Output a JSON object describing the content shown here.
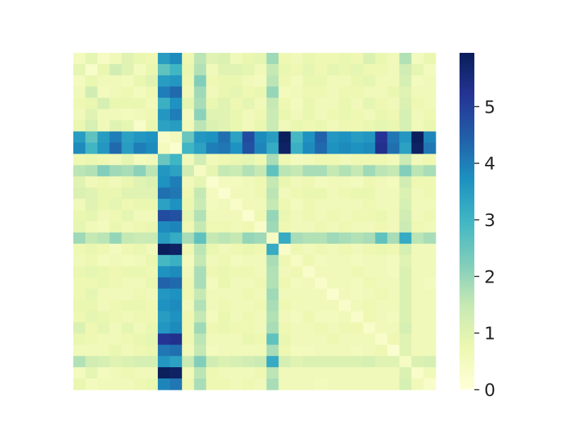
{
  "chart_data": {
    "type": "heatmap",
    "n_rows": 30,
    "n_cols": 30,
    "colormap": "YlGnBu",
    "vmin": 0,
    "vmax": 5.95,
    "colorbar": {
      "ticks": [
        0,
        1,
        2,
        3,
        4,
        5
      ],
      "tick_labels": [
        "0",
        "1",
        "2",
        "3",
        "4",
        "5"
      ]
    },
    "values": [
      [
        0.5,
        0.9,
        0.4,
        0.6,
        1.0,
        0.8,
        0.7,
        3.5,
        3.8,
        0.7,
        1.6,
        1.0,
        1.1,
        0.6,
        0.8,
        0.9,
        1.9,
        0.7,
        0.6,
        0.8,
        0.7,
        0.7,
        0.8,
        0.7,
        1.1,
        0.8,
        0.6,
        1.7,
        0.5,
        0.8
      ],
      [
        0.9,
        0.3,
        0.8,
        1.3,
        1.0,
        0.5,
        0.8,
        2.6,
        3.0,
        0.8,
        1.7,
        0.6,
        1.0,
        1.0,
        0.9,
        0.6,
        1.5,
        0.8,
        0.7,
        0.9,
        0.7,
        0.9,
        0.8,
        0.9,
        0.7,
        0.7,
        0.6,
        1.3,
        0.9,
        0.5
      ],
      [
        0.5,
        0.8,
        0.6,
        0.6,
        0.5,
        0.8,
        1.0,
        3.5,
        3.6,
        0.7,
        2.2,
        0.7,
        0.8,
        0.8,
        0.6,
        0.5,
        1.6,
        0.7,
        0.5,
        0.8,
        0.8,
        0.6,
        0.6,
        0.8,
        0.9,
        0.6,
        0.6,
        1.2,
        0.5,
        0.6
      ],
      [
        0.6,
        1.3,
        0.5,
        0.6,
        0.7,
        0.5,
        0.7,
        4.0,
        4.3,
        0.6,
        1.9,
        0.6,
        0.8,
        0.9,
        0.7,
        0.8,
        2.0,
        0.5,
        0.6,
        0.7,
        0.7,
        0.6,
        0.7,
        0.7,
        0.6,
        0.6,
        0.8,
        1.0,
        0.6,
        0.6
      ],
      [
        0.7,
        0.8,
        1.2,
        0.8,
        0.8,
        0.8,
        0.6,
        3.1,
        3.7,
        0.9,
        1.8,
        0.8,
        1.0,
        0.7,
        0.9,
        0.6,
        1.5,
        0.7,
        0.5,
        0.8,
        0.6,
        0.6,
        0.8,
        0.6,
        0.9,
        0.7,
        0.6,
        1.1,
        0.7,
        0.6
      ],
      [
        0.6,
        1.0,
        0.6,
        0.6,
        0.5,
        0.6,
        0.7,
        3.6,
        4.0,
        0.5,
        2.1,
        1.0,
        1.0,
        0.8,
        0.6,
        0.7,
        1.4,
        0.8,
        0.6,
        0.8,
        0.6,
        0.7,
        0.8,
        0.7,
        0.6,
        0.8,
        0.7,
        1.2,
        0.6,
        0.7
      ],
      [
        0.8,
        1.2,
        0.6,
        1.0,
        0.9,
        0.3,
        0.8,
        3.4,
        3.5,
        0.6,
        1.6,
        1.1,
        1.0,
        0.8,
        0.6,
        0.8,
        1.4,
        0.6,
        0.8,
        0.7,
        0.8,
        0.6,
        0.7,
        0.7,
        0.8,
        0.9,
        0.8,
        1.2,
        0.6,
        0.8
      ],
      [
        3.5,
        2.6,
        3.5,
        4.0,
        3.4,
        3.6,
        3.7,
        0.3,
        0.5,
        2.5,
        3.6,
        3.7,
        4.2,
        3.4,
        4.8,
        3.8,
        3.5,
        5.9,
        2.9,
        3.7,
        4.4,
        3.6,
        3.7,
        3.5,
        3.6,
        5.2,
        4.1,
        3.6,
        5.9,
        3.9
      ],
      [
        3.8,
        3.0,
        3.6,
        4.3,
        3.5,
        4.0,
        3.8,
        0.5,
        0.2,
        3.0,
        3.4,
        4.0,
        4.1,
        3.7,
        4.7,
        3.9,
        3.2,
        5.8,
        3.1,
        3.8,
        4.3,
        3.7,
        3.8,
        3.7,
        3.8,
        5.3,
        4.2,
        3.4,
        5.8,
        4.1
      ],
      [
        0.7,
        0.8,
        0.7,
        0.6,
        0.9,
        0.5,
        0.6,
        2.5,
        3.0,
        0.6,
        1.3,
        0.6,
        0.7,
        0.8,
        0.9,
        0.7,
        1.8,
        0.7,
        0.5,
        0.6,
        0.7,
        0.7,
        0.6,
        0.7,
        0.7,
        0.7,
        0.6,
        1.4,
        0.6,
        0.7
      ],
      [
        1.6,
        1.7,
        2.2,
        1.9,
        1.8,
        2.1,
        1.6,
        3.6,
        3.4,
        1.3,
        0.4,
        0.9,
        1.5,
        1.4,
        1.7,
        1.5,
        2.6,
        1.6,
        1.5,
        1.8,
        1.8,
        1.5,
        1.7,
        1.5,
        1.9,
        1.6,
        1.5,
        2.2,
        1.6,
        1.8
      ],
      [
        1.0,
        0.6,
        0.7,
        0.6,
        0.8,
        1.0,
        1.1,
        3.7,
        4.0,
        0.6,
        0.9,
        0.2,
        0.5,
        0.5,
        0.6,
        0.7,
        1.5,
        0.8,
        0.6,
        0.7,
        0.5,
        0.6,
        0.6,
        0.5,
        0.7,
        0.6,
        0.5,
        1.3,
        0.7,
        0.7
      ],
      [
        1.1,
        1.0,
        0.8,
        0.8,
        1.0,
        1.0,
        1.0,
        4.2,
        4.1,
        0.7,
        1.5,
        0.5,
        0.2,
        0.6,
        0.6,
        0.7,
        1.6,
        0.6,
        0.7,
        0.8,
        0.8,
        0.6,
        0.7,
        0.8,
        0.8,
        0.6,
        0.6,
        1.1,
        0.6,
        0.7
      ],
      [
        0.6,
        1.0,
        0.8,
        0.9,
        0.7,
        0.8,
        0.8,
        3.4,
        3.7,
        0.8,
        1.4,
        0.5,
        0.6,
        0.3,
        0.6,
        0.6,
        1.5,
        0.7,
        0.5,
        0.7,
        0.6,
        0.6,
        0.6,
        0.6,
        0.7,
        0.6,
        0.6,
        1.2,
        0.6,
        0.6
      ],
      [
        0.8,
        0.9,
        0.6,
        0.7,
        0.9,
        0.6,
        0.6,
        4.8,
        4.7,
        0.9,
        1.7,
        0.6,
        0.6,
        0.6,
        0.2,
        0.7,
        2.0,
        0.8,
        0.6,
        0.7,
        0.6,
        0.7,
        0.6,
        0.7,
        0.7,
        0.8,
        0.6,
        1.3,
        0.6,
        0.7
      ],
      [
        0.9,
        0.6,
        0.5,
        0.8,
        0.6,
        0.7,
        0.8,
        3.8,
        3.9,
        0.7,
        1.5,
        0.7,
        0.7,
        0.6,
        0.7,
        0.3,
        1.9,
        0.7,
        0.6,
        0.6,
        0.7,
        0.6,
        0.7,
        0.6,
        0.6,
        0.7,
        0.6,
        1.4,
        0.7,
        0.6
      ],
      [
        1.9,
        1.5,
        1.6,
        2.0,
        1.5,
        1.4,
        1.4,
        3.5,
        3.2,
        1.8,
        2.6,
        1.5,
        1.6,
        1.5,
        2.0,
        1.9,
        0.4,
        3.2,
        1.8,
        1.7,
        1.7,
        1.9,
        1.8,
        1.7,
        1.8,
        2.6,
        1.8,
        3.2,
        1.6,
        1.8
      ],
      [
        0.7,
        0.8,
        0.7,
        0.5,
        0.7,
        0.8,
        0.6,
        5.9,
        5.8,
        0.7,
        1.6,
        0.8,
        0.6,
        0.7,
        0.8,
        0.7,
        3.2,
        0.3,
        0.7,
        0.6,
        0.7,
        0.6,
        0.7,
        0.6,
        0.7,
        0.8,
        0.7,
        1.2,
        0.6,
        0.6
      ],
      [
        0.6,
        0.7,
        0.5,
        0.6,
        0.5,
        0.6,
        0.8,
        2.9,
        3.1,
        0.5,
        1.5,
        0.6,
        0.7,
        0.5,
        0.6,
        0.6,
        1.8,
        0.7,
        0.4,
        0.7,
        0.5,
        0.6,
        0.6,
        0.5,
        0.6,
        0.6,
        0.5,
        1.0,
        0.6,
        0.6
      ],
      [
        0.8,
        0.9,
        0.8,
        0.7,
        0.8,
        0.8,
        0.7,
        3.7,
        3.8,
        0.6,
        1.8,
        0.7,
        0.8,
        0.7,
        0.7,
        0.6,
        1.7,
        0.6,
        0.7,
        0.3,
        0.6,
        0.6,
        0.6,
        0.7,
        0.6,
        0.6,
        0.5,
        1.1,
        0.6,
        0.6
      ],
      [
        0.7,
        0.7,
        0.8,
        0.7,
        0.6,
        0.6,
        0.8,
        4.4,
        4.3,
        0.7,
        1.8,
        0.5,
        0.8,
        0.6,
        0.6,
        0.7,
        1.7,
        0.7,
        0.5,
        0.6,
        0.3,
        0.6,
        0.6,
        0.5,
        0.7,
        0.6,
        0.6,
        1.1,
        0.6,
        0.5
      ],
      [
        0.7,
        0.9,
        0.6,
        0.6,
        0.6,
        0.7,
        0.6,
        3.6,
        3.7,
        0.7,
        1.5,
        0.6,
        0.6,
        0.6,
        0.7,
        0.6,
        1.9,
        0.6,
        0.6,
        0.6,
        0.6,
        0.2,
        0.6,
        0.5,
        0.6,
        0.7,
        0.6,
        1.1,
        0.6,
        0.6
      ],
      [
        0.8,
        0.8,
        0.6,
        0.7,
        0.8,
        0.8,
        0.7,
        3.7,
        3.8,
        0.6,
        1.7,
        0.6,
        0.7,
        0.6,
        0.6,
        0.7,
        1.8,
        0.7,
        0.6,
        0.6,
        0.6,
        0.6,
        0.3,
        0.6,
        0.7,
        0.6,
        0.6,
        1.1,
        0.6,
        0.6
      ],
      [
        0.7,
        0.9,
        0.8,
        0.7,
        0.6,
        0.7,
        0.7,
        3.5,
        3.7,
        0.7,
        1.5,
        0.5,
        0.8,
        0.6,
        0.7,
        0.6,
        1.7,
        0.6,
        0.5,
        0.7,
        0.5,
        0.5,
        0.6,
        0.3,
        0.7,
        0.6,
        0.5,
        1.1,
        0.6,
        0.6
      ],
      [
        1.1,
        0.7,
        0.9,
        0.6,
        0.9,
        0.6,
        0.8,
        3.6,
        3.8,
        0.7,
        1.9,
        0.7,
        0.8,
        0.7,
        0.7,
        0.6,
        1.8,
        0.7,
        0.6,
        0.6,
        0.7,
        0.6,
        0.7,
        0.7,
        0.3,
        0.6,
        0.6,
        1.2,
        0.6,
        0.6
      ],
      [
        0.8,
        0.7,
        0.6,
        0.6,
        0.7,
        0.8,
        0.9,
        5.2,
        5.3,
        0.7,
        1.6,
        0.6,
        0.6,
        0.6,
        0.8,
        0.7,
        2.6,
        0.8,
        0.6,
        0.6,
        0.6,
        0.7,
        0.6,
        0.6,
        0.6,
        0.3,
        0.7,
        1.0,
        0.6,
        0.6
      ],
      [
        0.6,
        0.6,
        0.6,
        0.8,
        0.6,
        0.7,
        0.8,
        4.1,
        4.2,
        0.6,
        1.5,
        0.5,
        0.6,
        0.6,
        0.6,
        0.6,
        1.8,
        0.7,
        0.5,
        0.5,
        0.6,
        0.6,
        0.6,
        0.5,
        0.6,
        0.7,
        0.2,
        1.0,
        0.6,
        0.6
      ],
      [
        1.7,
        1.3,
        1.2,
        1.0,
        1.1,
        1.2,
        1.2,
        3.6,
        3.4,
        1.4,
        2.2,
        1.3,
        1.1,
        1.2,
        1.3,
        1.4,
        3.2,
        1.2,
        1.0,
        1.1,
        1.1,
        1.1,
        1.1,
        1.1,
        1.2,
        1.0,
        1.0,
        0.4,
        1.1,
        1.2
      ],
      [
        0.5,
        0.9,
        0.5,
        0.6,
        0.7,
        0.6,
        0.6,
        5.9,
        5.8,
        0.6,
        1.6,
        0.7,
        0.6,
        0.6,
        0.6,
        0.7,
        1.6,
        0.6,
        0.6,
        0.6,
        0.6,
        0.6,
        0.6,
        0.6,
        0.6,
        0.6,
        0.6,
        1.1,
        0.3,
        0.6
      ],
      [
        0.8,
        0.5,
        0.6,
        0.6,
        0.6,
        0.7,
        0.8,
        3.9,
        4.1,
        0.7,
        1.8,
        0.7,
        0.7,
        0.6,
        0.7,
        0.6,
        1.8,
        0.6,
        0.6,
        0.6,
        0.5,
        0.6,
        0.6,
        0.6,
        0.6,
        0.6,
        0.6,
        1.2,
        0.6,
        0.3
      ]
    ]
  }
}
